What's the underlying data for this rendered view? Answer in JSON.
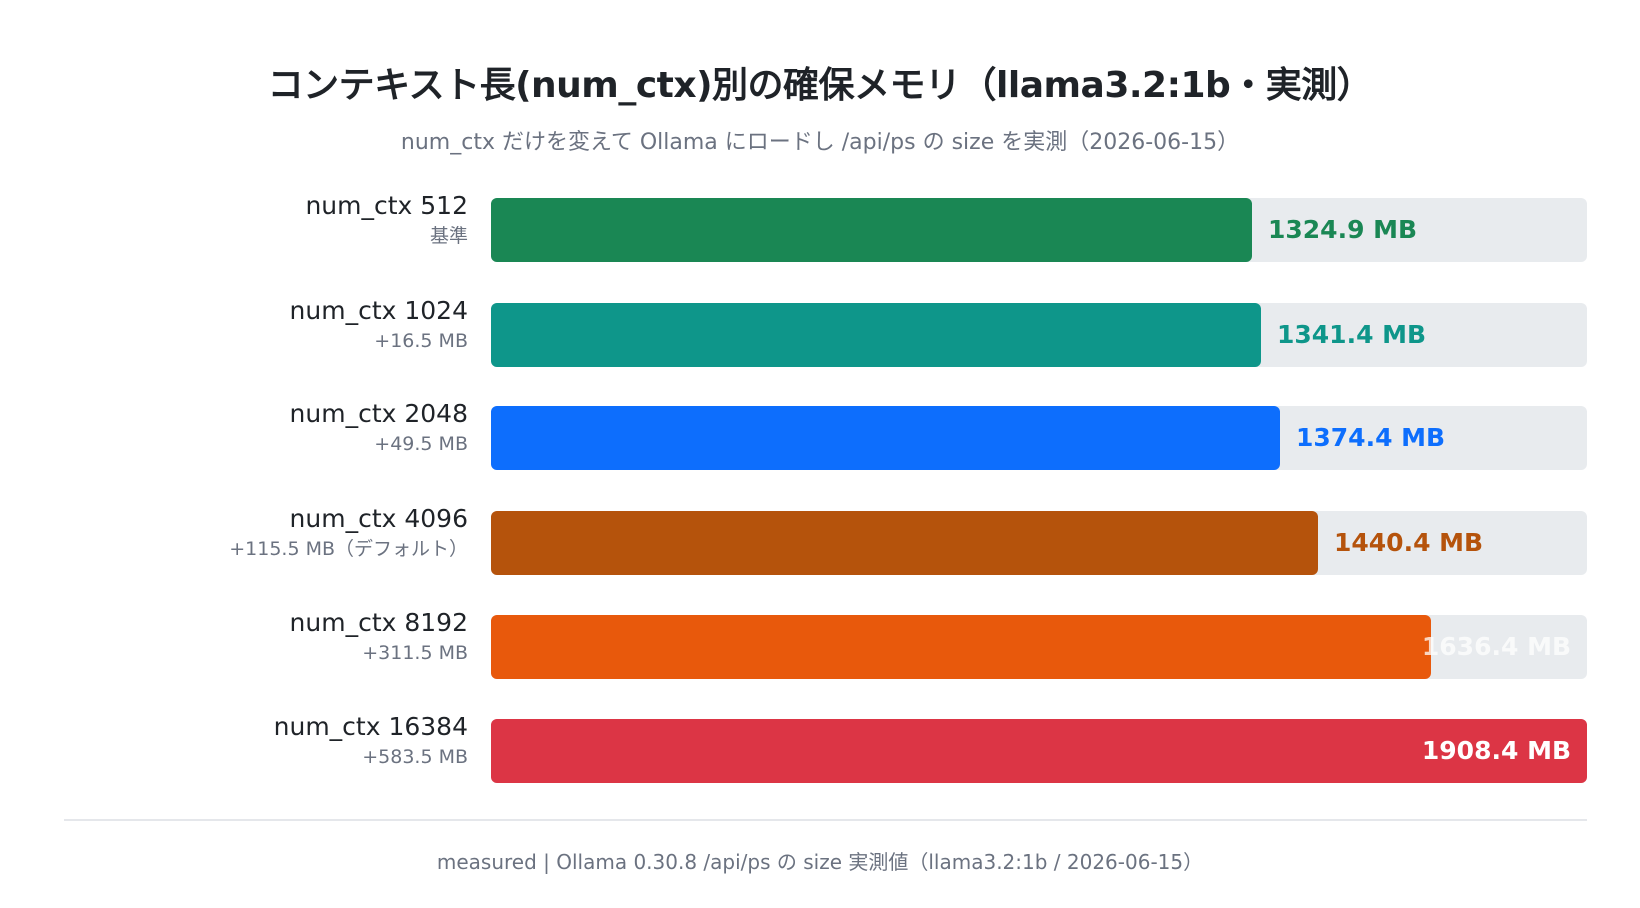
{
  "title": "コンテキスト長(num_ctx)別の確保メモリ（llama3.2:1b・実測）",
  "subtitle": "num_ctx だけを変えて Ollama にロードし /api/ps の size を実測（2026-06-15）",
  "footer": "measured | Ollama 0.30.8 /api/ps の size 実測値（llama3.2:1b / 2026-06-15）",
  "chart_data": {
    "type": "bar",
    "orientation": "horizontal",
    "xlim": [
      0,
      1908.4
    ],
    "unit": "MB",
    "grid": false,
    "categories": [
      "num_ctx 512",
      "num_ctx 1024",
      "num_ctx 2048",
      "num_ctx 4096",
      "num_ctx 8192",
      "num_ctx 16384"
    ],
    "sublabels": [
      "基準",
      "+16.5 MB",
      "+49.5 MB",
      "+115.5 MB（デフォルト）",
      "+311.5 MB",
      "+583.5 MB"
    ],
    "values": [
      1324.9,
      1341.4,
      1374.4,
      1440.4,
      1636.4,
      1908.4
    ],
    "value_labels": [
      "1324.9 MB",
      "1341.4 MB",
      "1374.4 MB",
      "1440.4 MB",
      "1636.4 MB",
      "1908.4 MB"
    ],
    "colors": [
      "#1a8754",
      "#0e968a",
      "#0d6efd",
      "#b5530c",
      "#e8590c",
      "#dc3545"
    ],
    "track_color": "#e8ebee"
  }
}
